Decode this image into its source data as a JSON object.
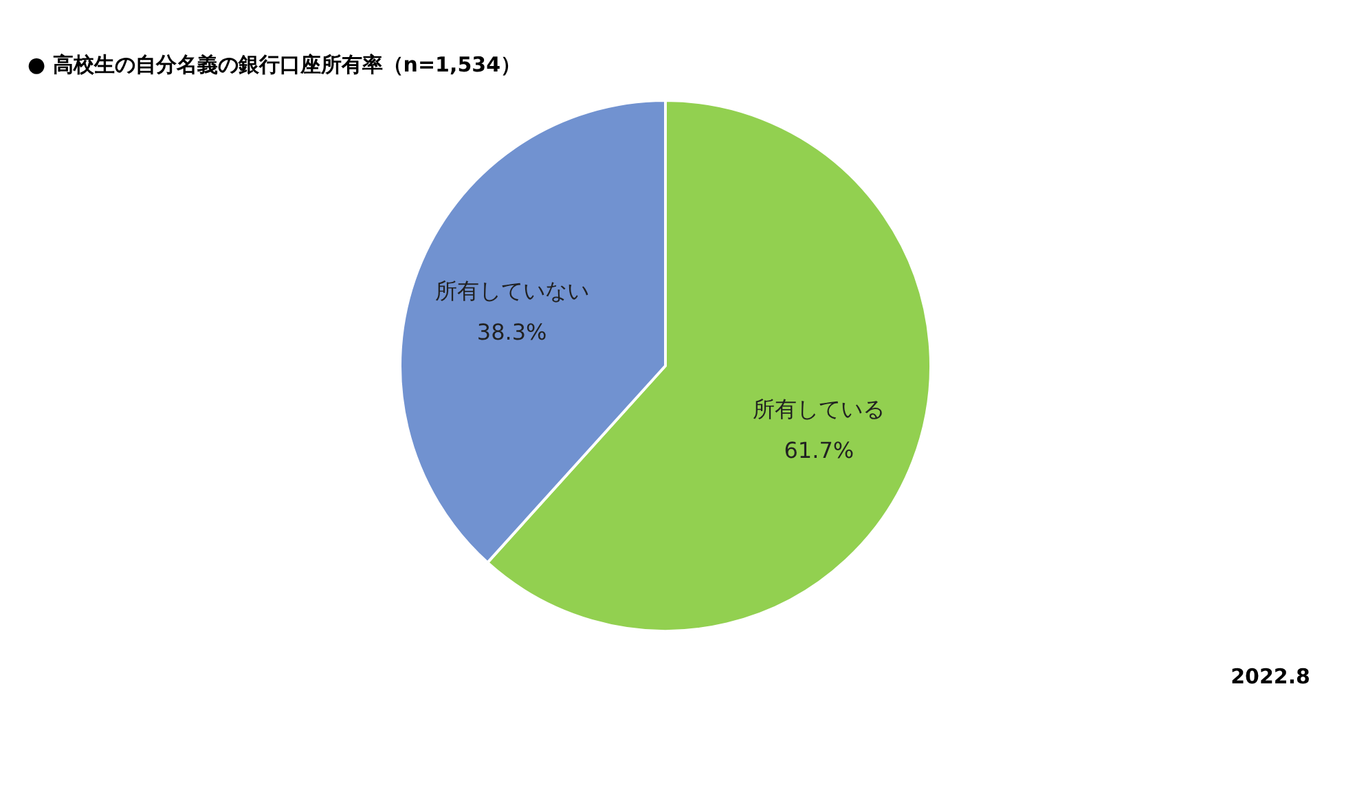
{
  "chart_data": {
    "type": "pie",
    "title": "● 高校生の自分名義の銀行口座所有率（n=1,534）",
    "categories": [
      "所有している",
      "所有していない"
    ],
    "values": [
      61.7,
      38.3
    ],
    "colors": [
      "#92d050",
      "#7192d0"
    ],
    "value_labels": [
      "61.7%",
      "38.3%"
    ],
    "legend": false,
    "annotations": [
      "2022.8"
    ]
  }
}
